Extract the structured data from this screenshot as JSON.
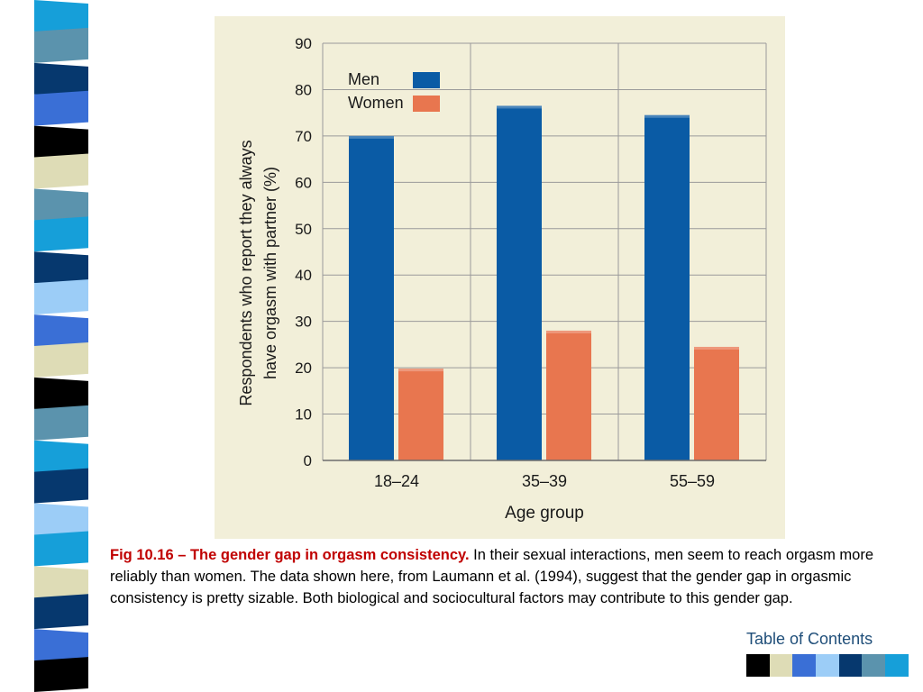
{
  "slide": {
    "caption_title": "Fig 10.16 – The gender gap in orgasm consistency.",
    "caption_body": " In their sexual interactions, men seem to reach orgasm more reliably than women. The data shown here, from Laumann et al. (1994), suggest that the gender gap in orgasmic consistency is pretty sizable. Both biological and sociocultural factors may contribute to this gender gap.",
    "toc_label": "Table of Contents",
    "swatches": [
      "#000000",
      "#dedcb6",
      "#3a6fd6",
      "#9ccdf7",
      "#06386e",
      "#5b93ad",
      "#169fd9"
    ],
    "strip_colors": [
      "#169fd9",
      "#5b93ad",
      "#06386e",
      "#3a6fd6",
      "#000000",
      "#dedcb6",
      "#5b93ad",
      "#169fd9",
      "#06386e",
      "#9ccdf7",
      "#3a6fd6",
      "#dedcb6",
      "#000000",
      "#5b93ad",
      "#169fd9",
      "#06386e",
      "#9ccdf7",
      "#169fd9",
      "#dedcb6",
      "#06386e",
      "#3a6fd6",
      "#000000"
    ]
  },
  "chart_data": {
    "type": "bar",
    "categories": [
      "18–24",
      "35–39",
      "55–59"
    ],
    "series": [
      {
        "name": "Men",
        "values": [
          70,
          76.5,
          74.5
        ],
        "color": "#0a5ba5"
      },
      {
        "name": "Women",
        "values": [
          19.8,
          28,
          24.5
        ],
        "color": "#e8764f"
      }
    ],
    "xlabel": "Age group",
    "ylabel_lines": [
      "Respondents who report they always",
      "have orgasm with partner (%)"
    ],
    "ylim": [
      0,
      90
    ],
    "yticks": [
      0,
      10,
      20,
      30,
      40,
      50,
      60,
      70,
      80,
      90
    ],
    "grid": true,
    "legend_position": "top-left",
    "panel_color": "#f2efd9"
  }
}
